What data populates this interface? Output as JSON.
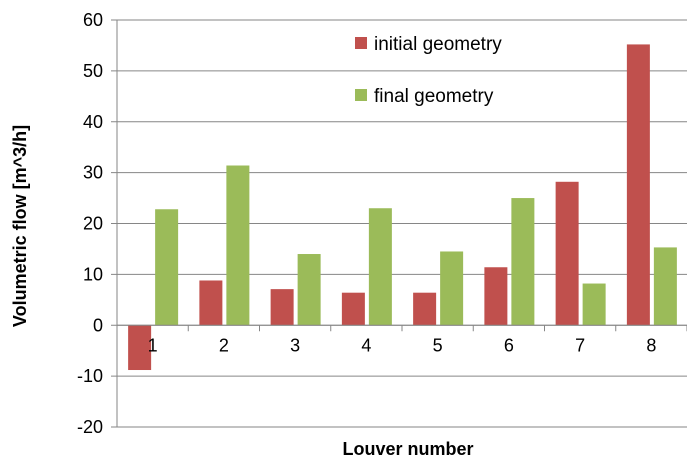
{
  "chart_data": {
    "type": "bar",
    "title": "",
    "xlabel": "Louver number",
    "ylabel": "Volumetric flow [m^3/h]",
    "categories": [
      "1",
      "2",
      "3",
      "4",
      "5",
      "6",
      "7",
      "8"
    ],
    "series": [
      {
        "name": "initial geometry",
        "color": "#C0504D",
        "values": [
          -8.8,
          8.8,
          7.1,
          6.4,
          6.4,
          11.4,
          28.2,
          55.2
        ]
      },
      {
        "name": "final geometry",
        "color": "#9BBB59",
        "values": [
          22.8,
          31.4,
          14.0,
          23.0,
          14.5,
          25.0,
          8.2,
          15.3
        ]
      }
    ],
    "ylim": [
      -20,
      60
    ],
    "yticks": [
      -20,
      -10,
      0,
      10,
      20,
      30,
      40,
      50,
      60
    ],
    "grid": true,
    "legend_position": "top-right"
  }
}
